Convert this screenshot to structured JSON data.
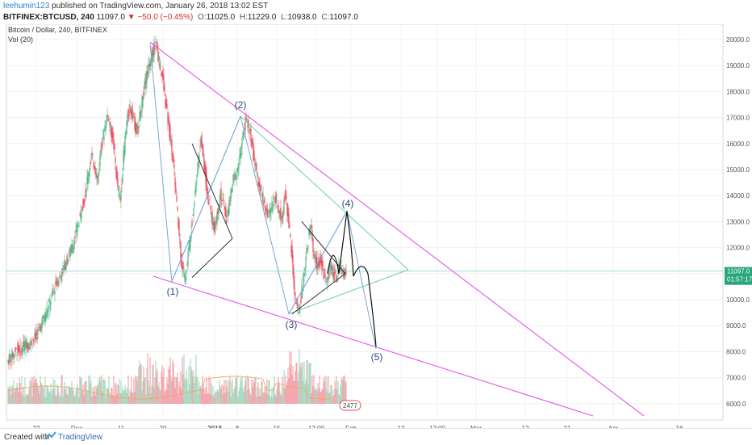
{
  "header": {
    "author": "leehumin123",
    "published": "published on TradingView.com, January 26, 2018 13:02 EST",
    "symbol": "BITFINEX:BTCUSD, 240",
    "last": "11097.0",
    "change": "−50.0 (−0.45%)",
    "open_label": "O:",
    "open": "11025.0",
    "high_label": "H:",
    "high": "11229.0",
    "low_label": "L:",
    "low": "10938.0",
    "close_label": "C:",
    "close": "11097.0"
  },
  "footer": {
    "created_with": "Created with",
    "brand": "TradingView"
  },
  "colors": {
    "up": "#53b987",
    "down": "#eb4d5c",
    "magenta": "#e356e3",
    "teal_line": "#6fcfa6",
    "blue_line": "#7aa6d9",
    "price_tag": "#26a67a"
  },
  "chart_data": {
    "type": "candlestick",
    "title": "Bitcoin / Dollar, 240, BITFINEX",
    "indicator": "Vol (20)",
    "y_ticks": [
      "20000.0",
      "19000.0",
      "18000.0",
      "17000.0",
      "16000.0",
      "15000.0",
      "14000.0",
      "13000.0",
      "12000.0",
      "11000.0",
      "10000.0",
      "9000.0",
      "8000.0",
      "7000.0",
      "6000.0"
    ],
    "ylim": [
      5500,
      20200
    ],
    "x_ticks": [
      "22",
      "Dec",
      "11",
      "20",
      "2018",
      "8",
      "15",
      "12:00",
      "Feb",
      "12",
      "12:00",
      "Mar",
      "12",
      "21",
      "Apr",
      "16"
    ],
    "price_tag": {
      "value": "11097.0",
      "countdown": "01:57:17"
    },
    "volume_label": "2477",
    "wave_labels": [
      "(1)",
      "(2)",
      "(3)",
      "(4)",
      "(5)"
    ],
    "wave_points": [
      {
        "label": "(1)",
        "price": 10700
      },
      {
        "label": "(2)",
        "price": 17100
      },
      {
        "label": "(3)",
        "price": 9400
      },
      {
        "label": "(4)",
        "price": 13400
      },
      {
        "label": "(5)",
        "price": 8100
      }
    ],
    "price_path": [
      [
        0,
        7600
      ],
      [
        4,
        7800
      ],
      [
        8,
        7900
      ],
      [
        12,
        8100
      ],
      [
        16,
        8000
      ],
      [
        20,
        8200
      ],
      [
        24,
        8350
      ],
      [
        28,
        8300
      ],
      [
        32,
        8450
      ],
      [
        36,
        8600
      ],
      [
        40,
        8900
      ],
      [
        44,
        9200
      ],
      [
        48,
        9500
      ],
      [
        52,
        9800
      ],
      [
        56,
        10200
      ],
      [
        60,
        10600
      ],
      [
        64,
        10800
      ],
      [
        68,
        11100
      ],
      [
        72,
        11400
      ],
      [
        76,
        11700
      ],
      [
        80,
        12000
      ],
      [
        84,
        12400
      ],
      [
        88,
        12900
      ],
      [
        92,
        13500
      ],
      [
        96,
        14000
      ],
      [
        100,
        14800
      ],
      [
        104,
        15500
      ],
      [
        108,
        15200
      ],
      [
        112,
        14600
      ],
      [
        116,
        15800
      ],
      [
        120,
        16500
      ],
      [
        124,
        17200
      ],
      [
        128,
        16600
      ],
      [
        132,
        15900
      ],
      [
        136,
        14500
      ],
      [
        140,
        13800
      ],
      [
        144,
        15500
      ],
      [
        148,
        16800
      ],
      [
        152,
        17400
      ],
      [
        156,
        17100
      ],
      [
        160,
        16400
      ],
      [
        164,
        17000
      ],
      [
        168,
        17800
      ],
      [
        172,
        18500
      ],
      [
        176,
        19100
      ],
      [
        180,
        19500
      ],
      [
        184,
        19850
      ],
      [
        188,
        19200
      ],
      [
        192,
        18600
      ],
      [
        196,
        17600
      ],
      [
        200,
        16700
      ],
      [
        204,
        15800
      ],
      [
        208,
        14500
      ],
      [
        212,
        12800
      ],
      [
        216,
        11400
      ],
      [
        220,
        10800
      ],
      [
        224,
        11700
      ],
      [
        228,
        12800
      ],
      [
        232,
        13900
      ],
      [
        236,
        15200
      ],
      [
        240,
        16300
      ],
      [
        244,
        15200
      ],
      [
        248,
        14100
      ],
      [
        252,
        13400
      ],
      [
        256,
        12700
      ],
      [
        260,
        13300
      ],
      [
        264,
        14100
      ],
      [
        268,
        13600
      ],
      [
        272,
        13100
      ],
      [
        276,
        13900
      ],
      [
        280,
        14600
      ],
      [
        284,
        14900
      ],
      [
        288,
        15400
      ],
      [
        292,
        16300
      ],
      [
        296,
        16900
      ],
      [
        300,
        16600
      ],
      [
        304,
        15800
      ],
      [
        308,
        15000
      ],
      [
        312,
        14500
      ],
      [
        316,
        14000
      ],
      [
        320,
        13500
      ],
      [
        324,
        13200
      ],
      [
        328,
        13600
      ],
      [
        332,
        14000
      ],
      [
        336,
        13500
      ],
      [
        340,
        13100
      ],
      [
        344,
        14000
      ],
      [
        348,
        13300
      ],
      [
        352,
        11900
      ],
      [
        356,
        10300
      ],
      [
        360,
        9500
      ],
      [
        364,
        10100
      ],
      [
        368,
        11100
      ],
      [
        372,
        12200
      ],
      [
        376,
        12800
      ],
      [
        380,
        11700
      ],
      [
        384,
        11300
      ],
      [
        388,
        11600
      ],
      [
        392,
        11000
      ],
      [
        396,
        10700
      ],
      [
        400,
        11300
      ],
      [
        404,
        11000
      ],
      [
        408,
        10900
      ],
      [
        412,
        11200
      ],
      [
        416,
        11000
      ],
      [
        420,
        11100
      ]
    ]
  }
}
